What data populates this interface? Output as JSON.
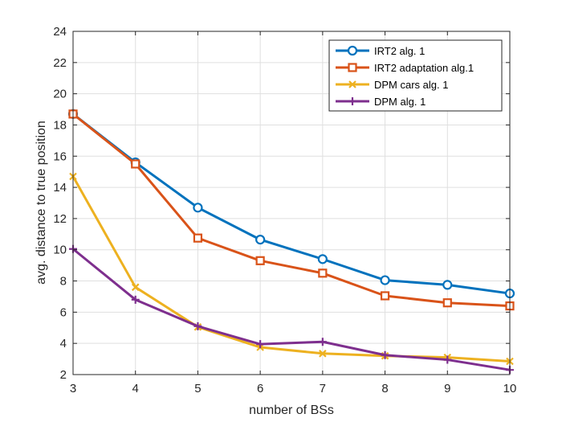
{
  "chart_data": {
    "type": "line",
    "title": "",
    "xlabel": "number of BSs",
    "ylabel": "avg. distance to true position",
    "xlim": [
      3,
      10
    ],
    "ylim": [
      2,
      24
    ],
    "xticks": [
      3,
      4,
      5,
      6,
      7,
      8,
      9,
      10
    ],
    "yticks": [
      2,
      4,
      6,
      8,
      10,
      12,
      14,
      16,
      18,
      20,
      22,
      24
    ],
    "grid": true,
    "legend_position": "top-right",
    "x": [
      3,
      4,
      5,
      6,
      7,
      8,
      9,
      10
    ],
    "series": [
      {
        "name": "IRT2 alg. 1",
        "color": "#0072BD",
        "marker": "circle",
        "values": [
          18.7,
          15.6,
          12.7,
          10.65,
          9.4,
          8.05,
          7.75,
          7.2
        ]
      },
      {
        "name": "IRT2 adaptation alg.1",
        "color": "#D95319",
        "marker": "square",
        "values": [
          18.7,
          15.5,
          10.75,
          9.3,
          8.5,
          7.05,
          6.6,
          6.4
        ]
      },
      {
        "name": "DPM cars alg. 1",
        "color": "#EDB120",
        "marker": "x",
        "values": [
          14.7,
          7.6,
          5.05,
          3.75,
          3.35,
          3.2,
          3.1,
          2.85
        ]
      },
      {
        "name": "DPM alg. 1",
        "color": "#7E2F8E",
        "marker": "plus",
        "values": [
          10.05,
          6.8,
          5.1,
          3.95,
          4.1,
          3.25,
          2.95,
          2.3
        ]
      }
    ]
  }
}
